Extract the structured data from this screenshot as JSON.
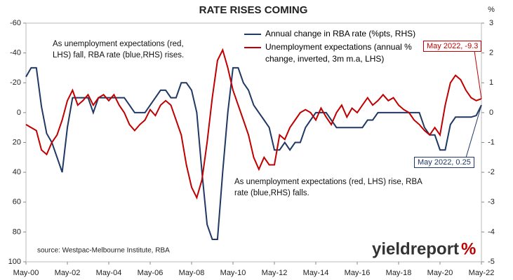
{
  "chart_data": {
    "type": "line",
    "title": "RATE RISES COMING",
    "y2_unit": "%",
    "x": [
      "2000-05",
      "2000-08",
      "2000-11",
      "2001-02",
      "2001-05",
      "2001-08",
      "2001-11",
      "2002-02",
      "2002-05",
      "2002-08",
      "2002-11",
      "2003-02",
      "2003-05",
      "2003-08",
      "2003-11",
      "2004-02",
      "2004-05",
      "2004-08",
      "2004-11",
      "2005-02",
      "2005-05",
      "2005-08",
      "2005-11",
      "2006-02",
      "2006-05",
      "2006-08",
      "2006-11",
      "2007-02",
      "2007-05",
      "2007-08",
      "2007-11",
      "2008-02",
      "2008-05",
      "2008-08",
      "2008-11",
      "2009-02",
      "2009-05",
      "2009-08",
      "2009-11",
      "2010-02",
      "2010-05",
      "2010-08",
      "2010-11",
      "2011-02",
      "2011-05",
      "2011-08",
      "2011-11",
      "2012-02",
      "2012-05",
      "2012-08",
      "2012-11",
      "2013-02",
      "2013-05",
      "2013-08",
      "2013-11",
      "2014-02",
      "2014-05",
      "2014-08",
      "2014-11",
      "2015-02",
      "2015-05",
      "2015-08",
      "2015-11",
      "2016-02",
      "2016-05",
      "2016-08",
      "2016-11",
      "2017-02",
      "2017-05",
      "2017-08",
      "2017-11",
      "2018-02",
      "2018-05",
      "2018-08",
      "2018-11",
      "2019-02",
      "2019-05",
      "2019-08",
      "2019-11",
      "2020-02",
      "2020-05",
      "2020-08",
      "2020-11",
      "2021-02",
      "2021-05",
      "2021-08",
      "2021-11",
      "2022-02",
      "2022-05"
    ],
    "series": [
      {
        "name": "Annual change in RBA rate (%pts, RHS)",
        "color": "#1f3864",
        "axis": "y2",
        "values": [
          1.2,
          1.5,
          1.5,
          0.2,
          -0.7,
          -1.0,
          -1.5,
          -2.0,
          -0.5,
          0.5,
          0.5,
          0.5,
          0.5,
          0.0,
          0.5,
          0.5,
          0.5,
          0.5,
          0.5,
          0.5,
          0.25,
          0.0,
          0.0,
          0.0,
          0.25,
          0.5,
          0.75,
          0.75,
          0.5,
          0.5,
          1.0,
          1.0,
          0.75,
          0.0,
          -2.0,
          -3.75,
          -4.25,
          -4.25,
          -2.0,
          0.0,
          1.5,
          1.5,
          1.0,
          0.75,
          0.25,
          0.0,
          -0.25,
          -0.5,
          -1.25,
          -1.25,
          -1.0,
          -1.25,
          -1.0,
          -1.0,
          -0.5,
          -0.25,
          0.0,
          0.0,
          0.0,
          -0.25,
          -0.5,
          -0.5,
          -0.5,
          -0.5,
          -0.5,
          -0.5,
          -0.25,
          -0.25,
          0.0,
          0.0,
          0.0,
          0.0,
          0.0,
          0.0,
          0.0,
          0.0,
          0.0,
          -0.5,
          -0.75,
          -0.75,
          -1.25,
          -1.25,
          -0.4,
          -0.15,
          -0.15,
          -0.15,
          -0.15,
          -0.1,
          0.25
        ]
      },
      {
        "name": "Unemployment expectations (annual % change, inverted, 3m m.a, LHS)",
        "color": "#c00000",
        "axis": "y",
        "values": [
          8,
          10,
          12,
          25,
          28,
          20,
          15,
          5,
          -8,
          -15,
          -5,
          -8,
          -12,
          -5,
          -10,
          -12,
          -8,
          -12,
          -5,
          0,
          8,
          12,
          8,
          5,
          -2,
          2,
          -5,
          -8,
          -5,
          5,
          15,
          35,
          50,
          57,
          45,
          20,
          -10,
          -35,
          -42,
          -30,
          -15,
          -5,
          5,
          15,
          30,
          38,
          30,
          35,
          35,
          15,
          18,
          10,
          5,
          0,
          -2,
          0,
          5,
          -3,
          3,
          8,
          0,
          -5,
          3,
          -3,
          0,
          -5,
          -10,
          -5,
          -8,
          -12,
          -8,
          -10,
          -5,
          -2,
          0,
          5,
          8,
          12,
          15,
          10,
          15,
          -5,
          -20,
          -25,
          -22,
          -15,
          -10,
          -8,
          -9.3
        ]
      }
    ],
    "ylim": [
      -60,
      100
    ],
    "y_inverted": true,
    "yticks": [
      -60,
      -40,
      -20,
      0,
      20,
      40,
      60,
      80,
      100
    ],
    "y2lim": [
      3,
      -5
    ],
    "y2ticks": [
      3,
      2,
      1,
      0,
      -1,
      -2,
      -3,
      -4,
      -5
    ],
    "xlim": [
      "2000-05",
      "2022-05"
    ],
    "xticks": [
      {
        "value": "2000-05",
        "label": "May-00"
      },
      {
        "value": "2002-05",
        "label": "May-02"
      },
      {
        "value": "2004-05",
        "label": "May-04"
      },
      {
        "value": "2006-05",
        "label": "May-06"
      },
      {
        "value": "2008-05",
        "label": "May-08"
      },
      {
        "value": "2010-05",
        "label": "May-10"
      },
      {
        "value": "2012-05",
        "label": "May-12"
      },
      {
        "value": "2014-05",
        "label": "May-14"
      },
      {
        "value": "2016-05",
        "label": "May-16"
      },
      {
        "value": "2018-05",
        "label": "May-18"
      },
      {
        "value": "2020-05",
        "label": "May-20"
      },
      {
        "value": "2022-05",
        "label": "May-22"
      }
    ],
    "annotations": [
      "As unemployment expectations (red, LHS) fall, RBA rate (blue,RHS) rises.",
      "As unemployment expectations (red, LHS) rise, RBA rate (blue,RHS) falls."
    ],
    "callouts": [
      {
        "text": "May 2022, -9.3",
        "series": 1
      },
      {
        "text": "May 2022, 0.25",
        "series": 0
      }
    ],
    "source": "source: Westpac-Melbourne Institute, RBA",
    "logo": {
      "main": "yieldreport",
      "mark": "%"
    }
  }
}
